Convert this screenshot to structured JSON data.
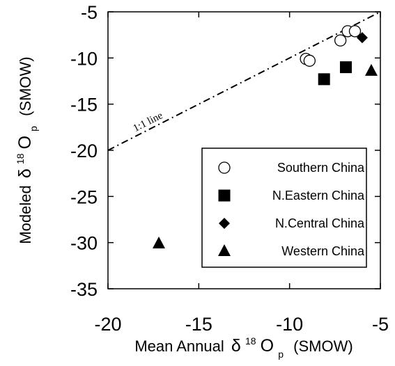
{
  "chart_data": {
    "type": "scatter",
    "title": "",
    "xlabel": {
      "main": "Mean Annual",
      "delta": "δ",
      "sup": "18",
      "element": "O",
      "sub": "p",
      "tail": "(SMOW)"
    },
    "ylabel": {
      "main": "Modeled",
      "delta": "δ",
      "sup": "18",
      "element": "O",
      "sub": "p",
      "tail": "(SMOW)"
    },
    "xlim": [
      -20,
      -5
    ],
    "ylim": [
      -35,
      -5
    ],
    "xticks": [
      -20,
      -15,
      -10,
      -5
    ],
    "yticks": [
      -5,
      -10,
      -15,
      -20,
      -25,
      -30,
      -35
    ],
    "xtick_labels": [
      "-20",
      "-15",
      "-10",
      "-5"
    ],
    "ytick_labels": [
      "-5",
      "-10",
      "-15",
      "-20",
      "-25",
      "-30",
      "-35"
    ],
    "grid": false,
    "legend_position": "lower-right",
    "reference_line": {
      "label": "1:1 line",
      "x": [
        -20,
        -5
      ],
      "y": [
        -20,
        -5
      ],
      "style": "dash-dot"
    },
    "series": [
      {
        "name": "Southern China",
        "marker": "open-circle",
        "points": [
          {
            "x": -9.1,
            "y": -10.1
          },
          {
            "x": -8.9,
            "y": -10.3
          },
          {
            "x": -7.2,
            "y": -8.1
          },
          {
            "x": -6.8,
            "y": -7.1
          },
          {
            "x": -6.4,
            "y": -7.1
          }
        ]
      },
      {
        "name": "N.Eastern China",
        "marker": "filled-square",
        "points": [
          {
            "x": -8.1,
            "y": -12.3
          },
          {
            "x": -6.9,
            "y": -11.0
          }
        ]
      },
      {
        "name": "N.Central China",
        "marker": "filled-diamond",
        "points": [
          {
            "x": -6.0,
            "y": -7.8
          }
        ]
      },
      {
        "name": "Western China",
        "marker": "filled-triangle",
        "points": [
          {
            "x": -17.2,
            "y": -30.1
          },
          {
            "x": -5.5,
            "y": -11.4
          }
        ]
      }
    ]
  }
}
